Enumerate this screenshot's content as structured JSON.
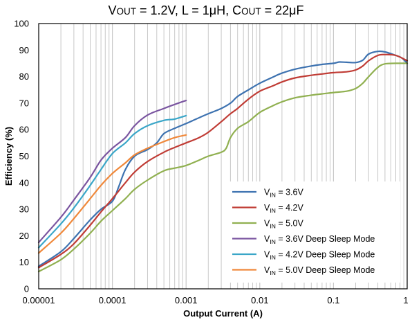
{
  "chart_data": {
    "type": "line",
    "title": "V_OUT = 1.2V, L = 1μH, C_OUT = 22μF",
    "title_parts": [
      {
        "t": "V",
        "sc": false
      },
      {
        "t": "OUT",
        "sc": true
      },
      {
        "t": " = 1.2V, L = 1μH, C",
        "sc": false
      },
      {
        "t": "OUT",
        "sc": true
      },
      {
        "t": " = 22μF",
        "sc": false
      }
    ],
    "xlabel": "Output Current (A)",
    "ylabel": "Efficiency (%)",
    "xscale": "log",
    "xlim": [
      1e-05,
      1
    ],
    "ylim": [
      0,
      100
    ],
    "xticks": [
      {
        "v": 1e-05,
        "label": "0.00001"
      },
      {
        "v": 0.0001,
        "label": "0.0001"
      },
      {
        "v": 0.001,
        "label": "0.001"
      },
      {
        "v": 0.01,
        "label": "0.01"
      },
      {
        "v": 0.1,
        "label": "0.1"
      },
      {
        "v": 1,
        "label": "1"
      }
    ],
    "yticks": [
      0,
      10,
      20,
      30,
      40,
      50,
      60,
      70,
      80,
      90,
      100
    ],
    "grid": {
      "x_minor": true,
      "y_major": false
    },
    "legend_position": "bottom-right",
    "series": [
      {
        "name": "V_IN = 3.6V",
        "name_main": "V",
        "name_sub": "IN",
        "name_rest": " = 3.6V",
        "color": "#3d72b0",
        "points": [
          [
            1e-05,
            8.5
          ],
          [
            2e-05,
            14
          ],
          [
            3e-05,
            19
          ],
          [
            5e-05,
            26
          ],
          [
            7e-05,
            30
          ],
          [
            0.0001,
            33
          ],
          [
            0.00012,
            38
          ],
          [
            0.00015,
            45
          ],
          [
            0.0002,
            50
          ],
          [
            0.0003,
            52.5
          ],
          [
            0.0004,
            55
          ],
          [
            0.0005,
            58.5
          ],
          [
            0.0007,
            60.5
          ],
          [
            0.001,
            62.3
          ],
          [
            0.0015,
            64.5
          ],
          [
            0.002,
            66
          ],
          [
            0.003,
            68
          ],
          [
            0.004,
            70
          ],
          [
            0.005,
            72.5
          ],
          [
            0.007,
            75
          ],
          [
            0.01,
            77.5
          ],
          [
            0.015,
            79.8
          ],
          [
            0.02,
            81.3
          ],
          [
            0.03,
            82.8
          ],
          [
            0.05,
            84
          ],
          [
            0.07,
            84.6
          ],
          [
            0.1,
            85
          ],
          [
            0.12,
            85.5
          ],
          [
            0.15,
            85.4
          ],
          [
            0.2,
            85.3
          ],
          [
            0.25,
            86.2
          ],
          [
            0.3,
            88.5
          ],
          [
            0.4,
            89.5
          ],
          [
            0.5,
            89.3
          ],
          [
            0.7,
            88
          ],
          [
            0.85,
            87
          ],
          [
            1,
            85
          ]
        ]
      },
      {
        "name": "V_IN = 4.2V",
        "name_main": "V",
        "name_sub": "IN",
        "name_rest": " = 4.2V",
        "color": "#c03c35",
        "points": [
          [
            1e-05,
            8
          ],
          [
            2e-05,
            13
          ],
          [
            3e-05,
            17
          ],
          [
            5e-05,
            24
          ],
          [
            7e-05,
            29
          ],
          [
            0.0001,
            34
          ],
          [
            0.00015,
            40
          ],
          [
            0.0002,
            44
          ],
          [
            0.0003,
            48
          ],
          [
            0.0005,
            51.5
          ],
          [
            0.0007,
            53.3
          ],
          [
            0.001,
            55
          ],
          [
            0.0015,
            57
          ],
          [
            0.002,
            59
          ],
          [
            0.003,
            63
          ],
          [
            0.004,
            66
          ],
          [
            0.005,
            68
          ],
          [
            0.007,
            71.5
          ],
          [
            0.01,
            74.5
          ],
          [
            0.015,
            76.5
          ],
          [
            0.02,
            78
          ],
          [
            0.03,
            79.5
          ],
          [
            0.05,
            80.5
          ],
          [
            0.07,
            81
          ],
          [
            0.1,
            81.5
          ],
          [
            0.15,
            81.8
          ],
          [
            0.2,
            82.5
          ],
          [
            0.25,
            84
          ],
          [
            0.3,
            86
          ],
          [
            0.4,
            88
          ],
          [
            0.5,
            88.3
          ],
          [
            0.7,
            88
          ],
          [
            1,
            86
          ]
        ]
      },
      {
        "name": "V_IN = 5.0V",
        "name_main": "V",
        "name_sub": "IN",
        "name_rest": " = 5.0V",
        "color": "#90b050",
        "points": [
          [
            1e-05,
            6.5
          ],
          [
            2e-05,
            11
          ],
          [
            3e-05,
            15
          ],
          [
            5e-05,
            21
          ],
          [
            7e-05,
            25.5
          ],
          [
            0.0001,
            29.5
          ],
          [
            0.00015,
            34
          ],
          [
            0.0002,
            37.5
          ],
          [
            0.0003,
            41
          ],
          [
            0.0005,
            44.5
          ],
          [
            0.0007,
            45.5
          ],
          [
            0.001,
            46.5
          ],
          [
            0.0015,
            48.5
          ],
          [
            0.002,
            50
          ],
          [
            0.003,
            51.5
          ],
          [
            0.0035,
            53
          ],
          [
            0.004,
            57
          ],
          [
            0.005,
            60.5
          ],
          [
            0.007,
            63
          ],
          [
            0.01,
            66.5
          ],
          [
            0.015,
            69
          ],
          [
            0.02,
            70.5
          ],
          [
            0.03,
            72
          ],
          [
            0.05,
            73
          ],
          [
            0.07,
            73.5
          ],
          [
            0.1,
            74
          ],
          [
            0.15,
            74.5
          ],
          [
            0.2,
            75.5
          ],
          [
            0.25,
            77.5
          ],
          [
            0.3,
            80
          ],
          [
            0.4,
            83.5
          ],
          [
            0.5,
            84.8
          ],
          [
            0.7,
            85
          ],
          [
            1,
            85
          ]
        ]
      },
      {
        "name": "V_IN = 3.6V Deep Sleep Mode",
        "name_main": "V",
        "name_sub": "IN",
        "name_rest": " = 3.6V Deep Sleep Mode",
        "color": "#7a55a0",
        "points": [
          [
            1e-05,
            17.5
          ],
          [
            2e-05,
            27
          ],
          [
            3e-05,
            33.5
          ],
          [
            5e-05,
            42
          ],
          [
            7e-05,
            48.5
          ],
          [
            0.0001,
            53
          ],
          [
            0.00015,
            57
          ],
          [
            0.0002,
            61.5
          ],
          [
            0.0003,
            65.5
          ],
          [
            0.0005,
            68
          ],
          [
            0.0007,
            69.5
          ],
          [
            0.001,
            71
          ]
        ]
      },
      {
        "name": "V_IN = 4.2V Deep Sleep Mode",
        "name_main": "V",
        "name_sub": "IN",
        "name_rest": " = 4.2V Deep Sleep Mode",
        "color": "#3aa6c8",
        "points": [
          [
            1e-05,
            15.5
          ],
          [
            2e-05,
            24.5
          ],
          [
            3e-05,
            30.5
          ],
          [
            5e-05,
            39
          ],
          [
            7e-05,
            45
          ],
          [
            0.0001,
            51
          ],
          [
            0.00015,
            55
          ],
          [
            0.0002,
            58.5
          ],
          [
            0.0003,
            61.5
          ],
          [
            0.0005,
            63.5
          ],
          [
            0.0007,
            64
          ],
          [
            0.001,
            65.3
          ]
        ]
      },
      {
        "name": "V_IN = 5.0V Deep Sleep Mode",
        "name_main": "V",
        "name_sub": "IN",
        "name_rest": " = 5.0V Deep Sleep Mode",
        "color": "#f0883a",
        "points": [
          [
            1e-05,
            13.5
          ],
          [
            2e-05,
            21
          ],
          [
            3e-05,
            26.5
          ],
          [
            5e-05,
            34
          ],
          [
            7e-05,
            39
          ],
          [
            0.0001,
            43.5
          ],
          [
            0.00015,
            47.5
          ],
          [
            0.0002,
            50.5
          ],
          [
            0.0003,
            53
          ],
          [
            0.0005,
            55.5
          ],
          [
            0.0007,
            57
          ],
          [
            0.001,
            58
          ]
        ]
      }
    ]
  }
}
